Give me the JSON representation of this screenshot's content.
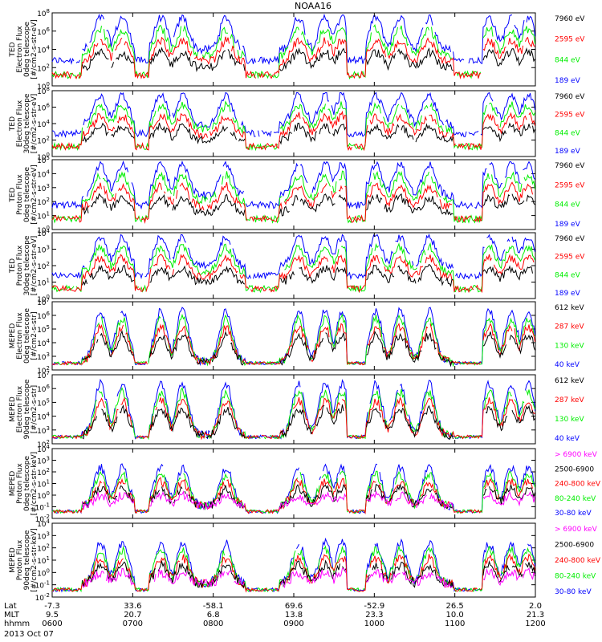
{
  "figure": {
    "title": "NOAA16",
    "date_label": "2013 Oct 07"
  },
  "colors": {
    "black": "#000000",
    "red": "#ff0000",
    "green": "#00ee00",
    "blue": "#0000ff",
    "magenta": "#ff00ff"
  },
  "chart_data": [
    {
      "type": "line",
      "instrument": "TED",
      "ylabel": [
        "TED",
        "Electron Flux",
        "0deg telescope",
        "[#/cm2-s-str-eV]"
      ],
      "yticks": [
        "10^8",
        "10^6",
        "10^4",
        "10^2",
        "10^0"
      ],
      "ylog": [
        0,
        8
      ],
      "series": [
        {
          "name": "7960 eV",
          "color": "#000000"
        },
        {
          "name": "2595 eV",
          "color": "#ff0000"
        },
        {
          "name": "844 eV",
          "color": "#00ee00"
        },
        {
          "name": "189 eV",
          "color": "#0000ff"
        }
      ]
    },
    {
      "type": "line",
      "instrument": "TED",
      "ylabel": [
        "TED",
        "Electron Flux",
        "30deg telescope",
        "[#/cm2-s-str-eV]"
      ],
      "yticks": [
        "10^8",
        "10^6",
        "10^4",
        "10^2",
        "10^0"
      ],
      "ylog": [
        0,
        8
      ],
      "series": [
        {
          "name": "7960 eV",
          "color": "#000000"
        },
        {
          "name": "2595 eV",
          "color": "#ff0000"
        },
        {
          "name": "844 eV",
          "color": "#00ee00"
        },
        {
          "name": "189 eV",
          "color": "#0000ff"
        }
      ]
    },
    {
      "type": "line",
      "instrument": "TED",
      "ylabel": [
        "TED",
        "Proton Flux",
        "0deg telescope",
        "[#/cm2-s-str-eV]"
      ],
      "yticks": [
        "10^5",
        "10^4",
        "10^3",
        "10^2",
        "10^1",
        "10^0"
      ],
      "ylog": [
        0,
        5
      ],
      "series": [
        {
          "name": "7960 eV",
          "color": "#000000"
        },
        {
          "name": "2595 eV",
          "color": "#ff0000"
        },
        {
          "name": "844 eV",
          "color": "#00ee00"
        },
        {
          "name": "189 eV",
          "color": "#0000ff"
        }
      ]
    },
    {
      "type": "line",
      "instrument": "TED",
      "ylabel": [
        "TED",
        "Proton Flux",
        "30deg telescope",
        "[#/cm2-s-str-eV]"
      ],
      "yticks": [
        "10^4",
        "10^3",
        "10^2",
        "10^1",
        "10^0"
      ],
      "ylog": [
        0,
        4
      ],
      "series": [
        {
          "name": "7960 eV",
          "color": "#000000"
        },
        {
          "name": "2595 eV",
          "color": "#ff0000"
        },
        {
          "name": "844 eV",
          "color": "#00ee00"
        },
        {
          "name": "189 eV",
          "color": "#0000ff"
        }
      ]
    },
    {
      "type": "line",
      "instrument": "MEPED",
      "ylabel": [
        "MEPED",
        "Electron Flux",
        "0deg telescope",
        "[#/cm2-s-str]"
      ],
      "yticks": [
        "10^7",
        "10^6",
        "10^5",
        "10^4",
        "10^3",
        "10^2"
      ],
      "ylog": [
        2,
        7
      ],
      "series": [
        {
          "name": "612 keV",
          "color": "#000000"
        },
        {
          "name": "287 keV",
          "color": "#ff0000"
        },
        {
          "name": "130 keV",
          "color": "#00ee00"
        },
        {
          "name": "40 keV",
          "color": "#0000ff"
        }
      ]
    },
    {
      "type": "line",
      "instrument": "MEPED",
      "ylabel": [
        "MEPED",
        "Electron Flux",
        "90deg telescope",
        "[#/cm2-s-str]"
      ],
      "yticks": [
        "10^7",
        "10^6",
        "10^5",
        "10^4",
        "10^3",
        "10^2"
      ],
      "ylog": [
        2,
        7
      ],
      "series": [
        {
          "name": "612 keV",
          "color": "#000000"
        },
        {
          "name": "287 keV",
          "color": "#ff0000"
        },
        {
          "name": "130 keV",
          "color": "#00ee00"
        },
        {
          "name": "40 keV",
          "color": "#0000ff"
        }
      ]
    },
    {
      "type": "line",
      "instrument": "MEPED",
      "ylabel": [
        "MEPED",
        "Proton Flux",
        "0deg telescope",
        "[#/cm2-s-str-keV]"
      ],
      "yticks": [
        "10^4",
        "10^3",
        "10^2",
        "10^1",
        "10^0",
        "10^-1",
        "10^-2"
      ],
      "ylog": [
        -2,
        4
      ],
      "series": [
        {
          "name": "> 6900 keV",
          "color": "#ff00ff"
        },
        {
          "name": "2500-6900",
          "color": "#000000"
        },
        {
          "name": "240-800 keV",
          "color": "#ff0000"
        },
        {
          "name": "80-240 keV",
          "color": "#00ee00"
        },
        {
          "name": "30-80 keV",
          "color": "#0000ff"
        }
      ]
    },
    {
      "type": "line",
      "instrument": "MEPED",
      "ylabel": [
        "MEPED",
        "Proton Flux",
        "90deg telescope",
        "[#/cm2-s-str-keV]"
      ],
      "yticks": [
        "10^4",
        "10^3",
        "10^2",
        "10^1",
        "10^0",
        "10^-1",
        "10^-2"
      ],
      "ylog": [
        -2,
        4
      ],
      "series": [
        {
          "name": "> 6900 keV",
          "color": "#ff00ff"
        },
        {
          "name": "2500-6900",
          "color": "#000000"
        },
        {
          "name": "240-800 keV",
          "color": "#ff0000"
        },
        {
          "name": "80-240 keV",
          "color": "#00ee00"
        },
        {
          "name": "30-80 keV",
          "color": "#0000ff"
        }
      ]
    }
  ],
  "x_axis": {
    "range": [
      "0600",
      "1200"
    ],
    "row_labels": [
      "Lat",
      "MLT",
      "hhmm"
    ],
    "ticks": [
      {
        "lat": "-7.3",
        "mlt": "9.5",
        "hhmm": "0600"
      },
      {
        "lat": "33.6",
        "mlt": "20.7",
        "hhmm": "0700"
      },
      {
        "lat": "-58.1",
        "mlt": "6.8",
        "hhmm": "0800"
      },
      {
        "lat": "69.6",
        "mlt": "13.8",
        "hhmm": "0900"
      },
      {
        "lat": "-52.9",
        "mlt": "23.3",
        "hhmm": "1000"
      },
      {
        "lat": "26.5",
        "mlt": "10.0",
        "hhmm": "1100"
      },
      {
        "lat": "2.0",
        "mlt": "21.3",
        "hhmm": "1200"
      }
    ]
  }
}
